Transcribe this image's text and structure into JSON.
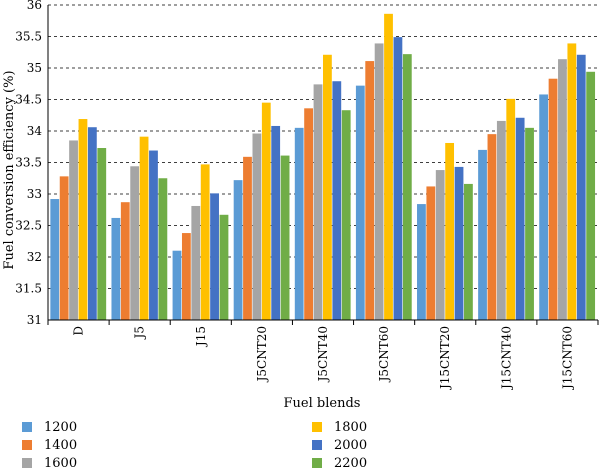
{
  "chart_data": {
    "type": "bar",
    "ylabel": "Fuel conversion efficiency (%)",
    "xlabel": "Fuel blends",
    "ylim": [
      31,
      36
    ],
    "ytick_step": 0.5,
    "yticks": [
      "31",
      "31.5",
      "32",
      "32.5",
      "33",
      "33.5",
      "34",
      "34.5",
      "35",
      "35.5",
      "36"
    ],
    "grid": "horizontal dashed",
    "legend_position": "bottom",
    "categories": [
      "D",
      "J5",
      "J15",
      "J5CNT20",
      "J5CNT40",
      "J5CNT60",
      "J15CNT20",
      "J15CNT40",
      "J15CNT60"
    ],
    "series": [
      {
        "name": "1200",
        "color": "#5B9BD5",
        "values": [
          32.92,
          32.62,
          32.1,
          33.22,
          34.05,
          34.72,
          32.84,
          33.7,
          34.58
        ]
      },
      {
        "name": "1400",
        "color": "#ED7D31",
        "values": [
          33.28,
          32.87,
          32.38,
          33.59,
          34.36,
          35.11,
          33.12,
          33.95,
          34.83
        ]
      },
      {
        "name": "1600",
        "color": "#A5A5A5",
        "values": [
          33.85,
          33.44,
          32.81,
          33.96,
          34.74,
          35.39,
          33.38,
          34.16,
          35.14
        ]
      },
      {
        "name": "1800",
        "color": "#FFC000",
        "values": [
          34.19,
          33.91,
          33.47,
          34.45,
          35.21,
          35.86,
          33.81,
          34.51,
          35.39
        ]
      },
      {
        "name": "2000",
        "color": "#4472C4",
        "values": [
          34.06,
          33.69,
          33.01,
          34.08,
          34.79,
          35.49,
          33.43,
          34.21,
          35.21
        ]
      },
      {
        "name": "2200",
        "color": "#70AD47",
        "values": [
          33.73,
          33.25,
          32.67,
          33.61,
          34.33,
          35.22,
          33.16,
          34.05,
          34.94
        ]
      }
    ]
  }
}
